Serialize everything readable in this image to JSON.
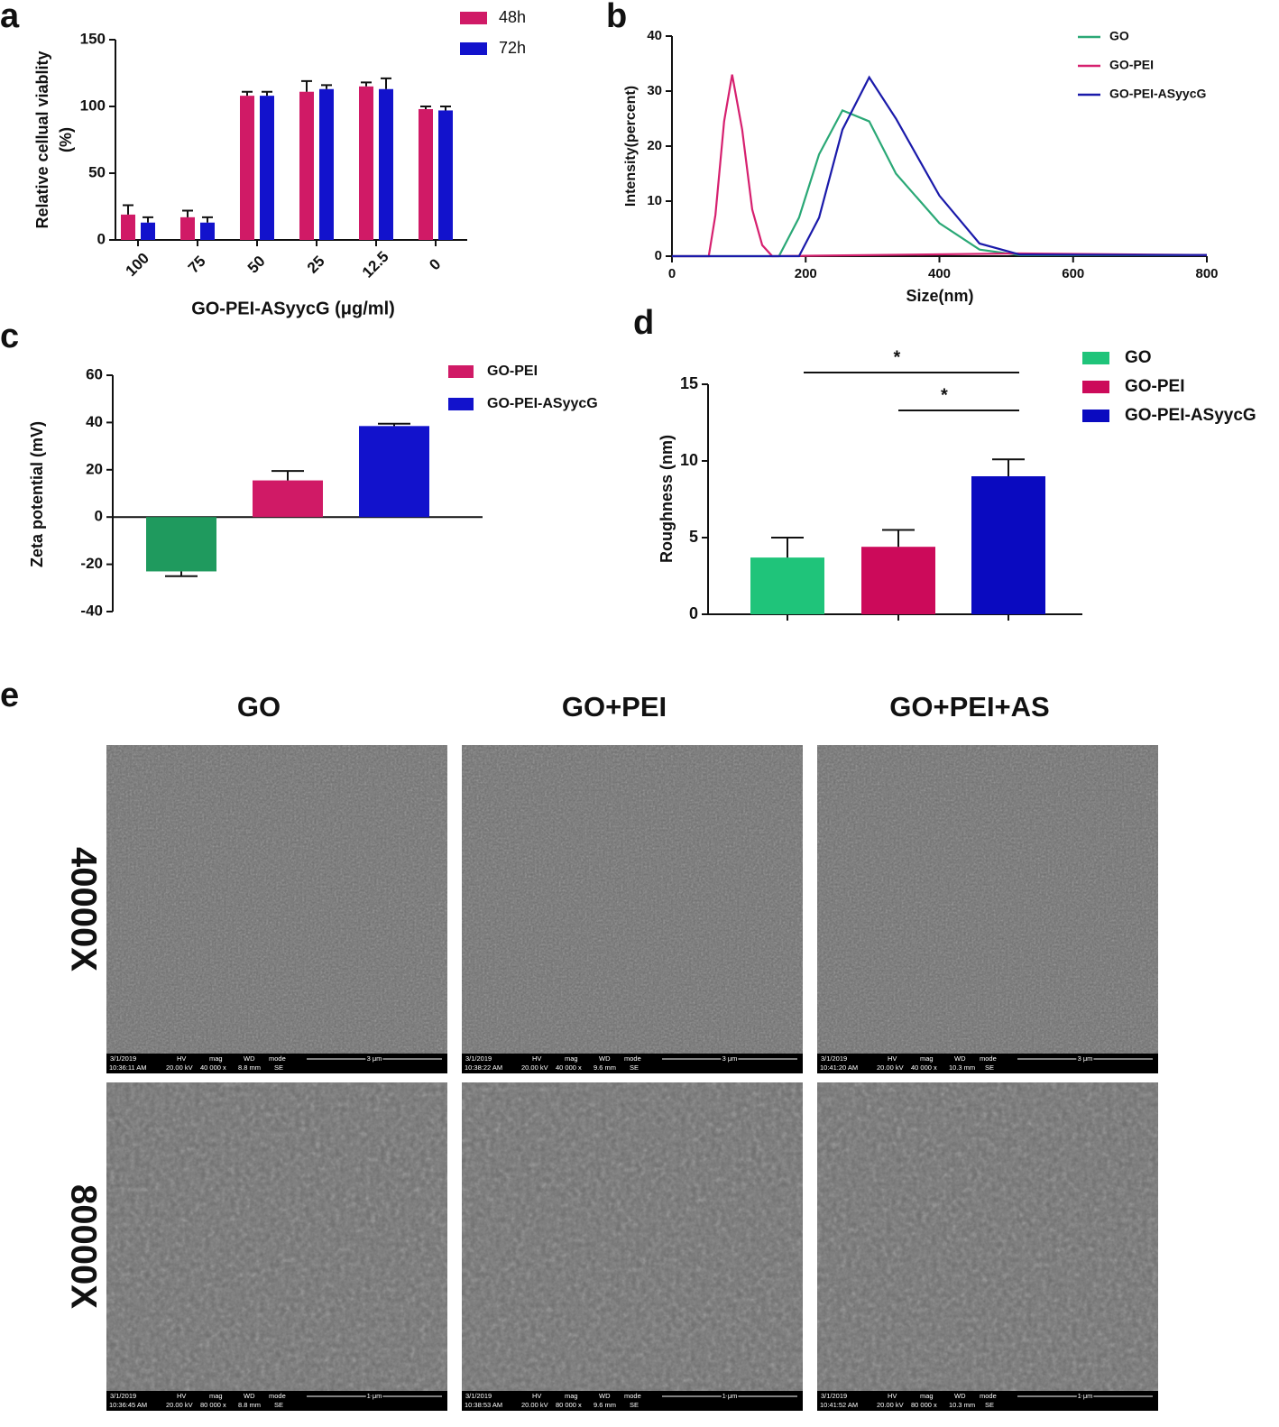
{
  "chart_data": [
    {
      "type": "bar",
      "label": "a",
      "y_label": [
        "Relative cellual viablity",
        "(%)"
      ],
      "x_label": "GO-PEI-ASyycG (μg/ml)",
      "categories": [
        "100",
        "75",
        "50",
        "25",
        "12.5",
        "0"
      ],
      "series": [
        {
          "name": "48h",
          "color": "#d01a66",
          "values": [
            19,
            17,
            108,
            111,
            115,
            98
          ],
          "errors": [
            7,
            5,
            3,
            8,
            3,
            2
          ]
        },
        {
          "name": "72h",
          "color": "#1212cc",
          "values": [
            13,
            13,
            108,
            113,
            113,
            97
          ],
          "errors": [
            4,
            4,
            3,
            3,
            8,
            3
          ]
        }
      ],
      "ylim": [
        0,
        150
      ],
      "yticks": [
        0,
        50,
        100,
        150
      ]
    },
    {
      "type": "line",
      "label": "b",
      "y_label": "Intensity(percent)",
      "x_label": "Size(nm)",
      "series": [
        {
          "name": "GO",
          "color": "#2aa876",
          "x": [
            0,
            160,
            190,
            220,
            255,
            295,
            335,
            400,
            460,
            520,
            800
          ],
          "values": [
            0,
            0,
            7,
            18.5,
            26.5,
            24.5,
            15,
            6,
            1.2,
            0.2,
            0.2
          ]
        },
        {
          "name": "GO-PEI",
          "color": "#d6206f",
          "x": [
            0,
            55,
            65,
            78,
            90,
            105,
            120,
            135,
            150,
            520,
            800
          ],
          "values": [
            0,
            0,
            7.5,
            24.5,
            33,
            23,
            8.5,
            2,
            0,
            0.5,
            0.2
          ]
        },
        {
          "name": "GO-PEI-ASyycG",
          "color": "#1a1aaa",
          "x": [
            0,
            190,
            220,
            255,
            295,
            335,
            400,
            460,
            520,
            800
          ],
          "values": [
            0,
            0,
            7,
            23,
            32.5,
            25,
            11,
            2.3,
            0.3,
            0.2
          ]
        }
      ],
      "xlim": [
        0,
        800
      ],
      "xticks": [
        0,
        200,
        400,
        600,
        800
      ],
      "ylim": [
        0,
        40
      ],
      "yticks": [
        0,
        10,
        20,
        30,
        40
      ]
    },
    {
      "type": "bar",
      "label": "c",
      "y_label": "Zeta potential (mV)",
      "values": [
        -23,
        15.5,
        38.5
      ],
      "errors": [
        2,
        4,
        1
      ],
      "colors": [
        "#1f9a5e",
        "#d01a66",
        "#1212cc"
      ],
      "legend": [
        {
          "name": "GO-PEI",
          "color": "#d01a66"
        },
        {
          "name": "GO-PEI-ASyycG",
          "color": "#1212cc"
        }
      ],
      "ylim": [
        -40,
        60
      ],
      "yticks": [
        -40,
        -20,
        0,
        20,
        40,
        60
      ]
    },
    {
      "type": "bar",
      "label": "d",
      "y_label": "Roughness (nm)",
      "values": [
        3.7,
        4.4,
        9.0
      ],
      "errors": [
        1.3,
        1.1,
        1.1
      ],
      "colors": [
        "#1fc47a",
        "#cc0a5a",
        "#0a0ac0"
      ],
      "legend": [
        {
          "name": "GO",
          "color": "#1fc47a"
        },
        {
          "name": "GO-PEI",
          "color": "#cc0a5a"
        },
        {
          "name": "GO-PEI-ASyycG",
          "color": "#0a0ac0"
        }
      ],
      "significance": [
        "*",
        "*"
      ],
      "ylim": [
        0,
        15
      ],
      "yticks": [
        0,
        5,
        10,
        15
      ]
    }
  ],
  "sem": {
    "label": "e",
    "columns": [
      "GO",
      "GO+PEI",
      "GO+PEI+AS"
    ],
    "rows": [
      "40000X",
      "80000X"
    ],
    "date": "3/1/2019",
    "headers": [
      "HV",
      "mag",
      "WD",
      "mode"
    ],
    "hv": "20.00 kV",
    "mode": "SE",
    "mags": [
      "40 000 x",
      "80 000 x"
    ],
    "scales": [
      "3 μm",
      "1 μm"
    ],
    "wd": [
      "8.8 mm",
      "9.6 mm",
      "10.3 mm"
    ],
    "times": [
      [
        "10:36:11 AM",
        "10:38:22 AM",
        "10:41:20 AM"
      ],
      [
        "10:36:45 AM",
        "10:38:53 AM",
        "10:41:52 AM"
      ]
    ]
  }
}
